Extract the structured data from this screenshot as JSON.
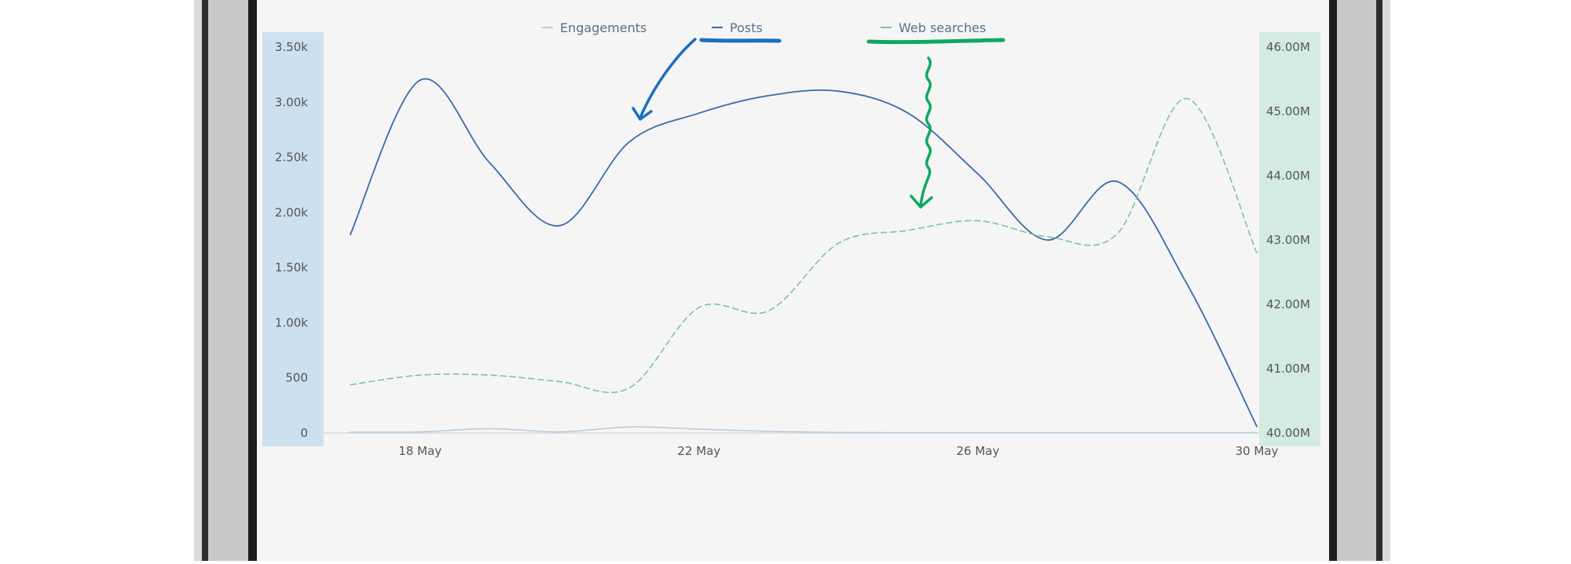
{
  "chart_data": {
    "type": "line",
    "legend": {
      "placement": "top",
      "items": [
        "Engagements",
        "Posts",
        "Web searches"
      ]
    },
    "x_ticks": [
      "18 May",
      "22 May",
      "26 May",
      "30 May"
    ],
    "x_range": [
      "17 May",
      "30 May"
    ],
    "left_axis": {
      "ticks": [
        "0",
        "500",
        "1.00k",
        "1.50k",
        "2.00k",
        "2.50k",
        "3.00k",
        "3.50k"
      ],
      "range": [
        0,
        3500
      ]
    },
    "right_axis": {
      "ticks": [
        "40.00M",
        "41.00M",
        "42.00M",
        "43.00M",
        "44.00M",
        "45.00M",
        "46.00M"
      ],
      "range": [
        40000000,
        46000000
      ]
    },
    "series": [
      {
        "name": "Engagements",
        "axis": "left",
        "style": "solid",
        "color": "#b8cde0",
        "points": [
          [
            "17 May",
            8
          ],
          [
            "18 May",
            10
          ],
          [
            "19 May",
            40
          ],
          [
            "20 May",
            10
          ],
          [
            "21 May",
            55
          ],
          [
            "22 May",
            35
          ],
          [
            "23 May",
            15
          ],
          [
            "24 May",
            5
          ],
          [
            "25 May",
            3
          ],
          [
            "26 May",
            3
          ],
          [
            "27 May",
            3
          ],
          [
            "28 May",
            3
          ],
          [
            "29 May",
            3
          ],
          [
            "30 May",
            3
          ]
        ]
      },
      {
        "name": "Posts",
        "axis": "left",
        "style": "solid",
        "color": "#3c6aa6",
        "points": [
          [
            "17 May",
            1800
          ],
          [
            "18 May",
            3200
          ],
          [
            "19 May",
            2450
          ],
          [
            "20 May",
            1880
          ],
          [
            "21 May",
            2640
          ],
          [
            "22 May",
            2900
          ],
          [
            "23 May",
            3060
          ],
          [
            "24 May",
            3100
          ],
          [
            "25 May",
            2900
          ],
          [
            "26 May",
            2350
          ],
          [
            "27 May",
            1750
          ],
          [
            "28 May",
            2280
          ],
          [
            "29 May",
            1350
          ],
          [
            "30 May",
            60
          ]
        ]
      },
      {
        "name": "Web searches",
        "axis": "right",
        "style": "dashed",
        "color": "#7cc2a0",
        "points": [
          [
            "17 May",
            40750000
          ],
          [
            "18 May",
            40900000
          ],
          [
            "19 May",
            40900000
          ],
          [
            "20 May",
            40800000
          ],
          [
            "21 May",
            40700000
          ],
          [
            "22 May",
            41950000
          ],
          [
            "23 May",
            41900000
          ],
          [
            "24 May",
            42950000
          ],
          [
            "25 May",
            43150000
          ],
          [
            "26 May",
            43300000
          ],
          [
            "27 May",
            43050000
          ],
          [
            "28 May",
            43100000
          ],
          [
            "29 May",
            45200000
          ],
          [
            "30 May",
            42800000
          ]
        ]
      }
    ],
    "annotations": [
      {
        "kind": "underline",
        "target": "Posts",
        "color": "#1a6fc0"
      },
      {
        "kind": "arrow",
        "target": "Posts",
        "color": "#1a6fc0"
      },
      {
        "kind": "underline",
        "target": "Web searches",
        "color": "#10a860"
      },
      {
        "kind": "squiggly-arrow",
        "target": "Web searches",
        "color": "#10a860"
      }
    ],
    "colors": {
      "left_axis_band": "#cde0ef",
      "right_axis_band": "#d4ebe1",
      "plot_bg": "#f5f5f5",
      "axis_text": "#555555",
      "legend_text": "#5a6f88"
    }
  }
}
